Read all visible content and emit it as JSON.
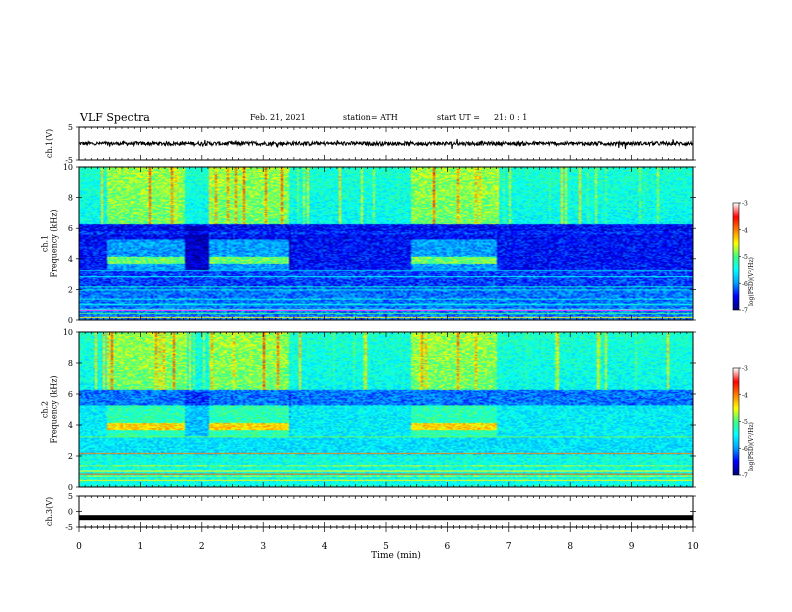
{
  "header": {
    "title": "VLF Spectra",
    "date": "Feb. 21, 2021",
    "station_label": "station= ATH",
    "start_label": "start  UT =",
    "start_value": "21: 0  : 1"
  },
  "chart_data": [
    {
      "type": "line",
      "panel": "ch1-waveform",
      "ylabel": "ch.1(V)",
      "ylim": [
        -5,
        5
      ],
      "yticks": [
        "5",
        "-5"
      ],
      "xlim": [
        0,
        10
      ],
      "baseline": 0,
      "noise_amplitude": 0.6
    },
    {
      "type": "heatmap",
      "panel": "ch1-spectrogram",
      "ylabel": "ch.1\nFrequency  (kHz)",
      "ylim": [
        0,
        10
      ],
      "yticks": [
        "0",
        "2",
        "4",
        "6",
        "8",
        "10"
      ],
      "xlim": [
        0,
        10
      ],
      "high_activity_intervals_min": [
        [
          0.45,
          1.7
        ],
        [
          2.1,
          3.4
        ],
        [
          5.4,
          6.8
        ]
      ],
      "colorbar": {
        "label": "log(PSD)(V²/Hz)",
        "ticks": [
          "-3",
          "-4",
          "-5",
          "-6",
          "-7"
        ],
        "range": [
          -7,
          -3
        ]
      }
    },
    {
      "type": "heatmap",
      "panel": "ch2-spectrogram",
      "ylabel": "ch.2\nFrequency  (kHz)",
      "ylim": [
        0,
        10
      ],
      "yticks": [
        "0",
        "2",
        "4",
        "6",
        "8",
        "10"
      ],
      "xlim": [
        0,
        10
      ],
      "high_activity_intervals_min": [
        [
          0.45,
          1.7
        ],
        [
          2.1,
          3.4
        ],
        [
          5.4,
          6.8
        ]
      ],
      "colorbar": {
        "label": "log(PSD)(V²/Hz)",
        "ticks": [
          "-3",
          "-4",
          "-5",
          "-6",
          "-7"
        ],
        "range": [
          -7,
          -3
        ]
      }
    },
    {
      "type": "line",
      "panel": "ch3-waveform",
      "ylabel": "ch.3(V)",
      "ylim": [
        -5,
        5
      ],
      "yticks": [
        "5",
        "0",
        "-5"
      ],
      "xlim": [
        0,
        10
      ],
      "baseline": -2,
      "noise_amplitude": 0.0
    }
  ],
  "xaxis": {
    "label": "Time  (min)",
    "ticks": [
      "0",
      "1",
      "2",
      "3",
      "4",
      "5",
      "6",
      "7",
      "8",
      "9",
      "10"
    ]
  },
  "colors": {
    "colormap": [
      "#000080",
      "#0000ff",
      "#00a0ff",
      "#00ffff",
      "#40ff80",
      "#ffff00",
      "#ff8000",
      "#ff0000",
      "#ffffff"
    ]
  }
}
